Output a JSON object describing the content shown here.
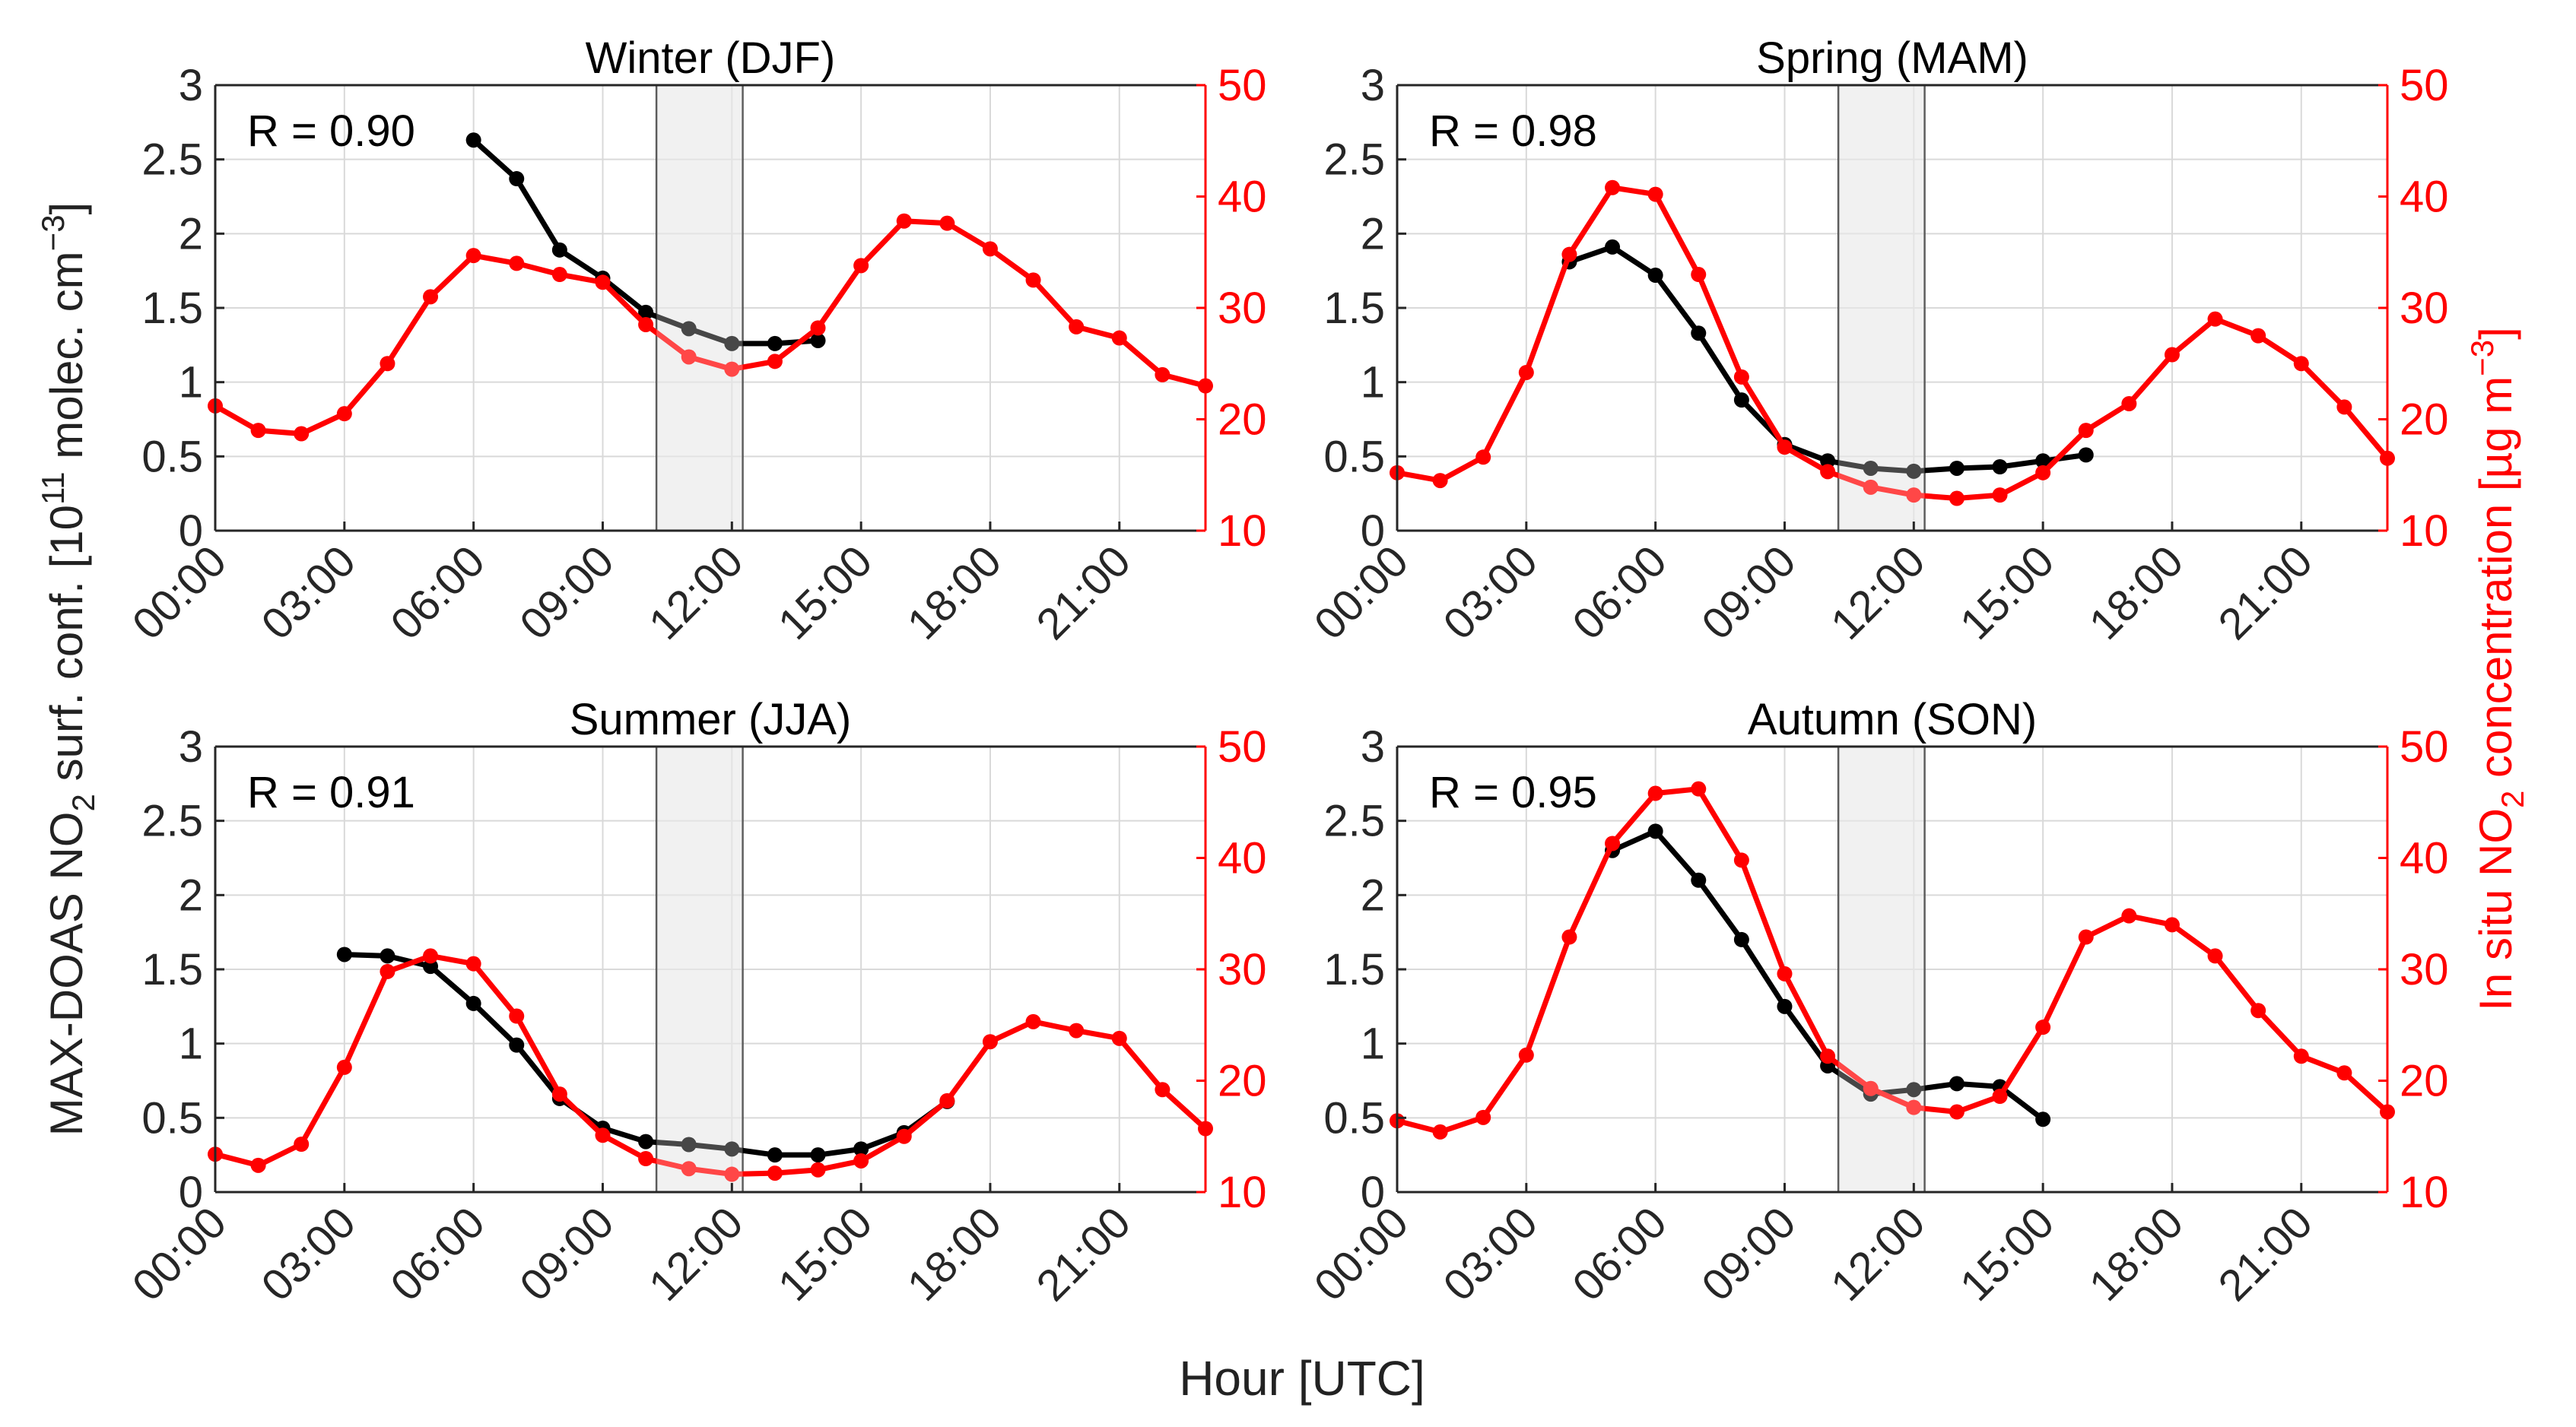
{
  "figure": {
    "ylabel_left": {
      "prefix": "MAX-DOAS NO",
      "sub": "2",
      "mid": " surf. conf. [10",
      "sup": "11",
      "suffix": " molec. cm",
      "sup2": "−3",
      "end": "]"
    },
    "ylabel_right": {
      "prefix": "In situ NO",
      "sub": "2",
      "mid": " concentration [µg m",
      "sup": "−3",
      "end": "]"
    },
    "xlabel": "Hour [UTC]"
  },
  "chart_data": [
    {
      "type": "line",
      "title": "Winter (DJF)",
      "annotation": "R = 0.90",
      "x_ticks": [
        "00:00",
        "03:00",
        "06:00",
        "09:00",
        "12:00",
        "15:00",
        "18:00",
        "21:00"
      ],
      "xlim": [
        0,
        23
      ],
      "ylim_left": [
        0,
        3
      ],
      "ylim_right": [
        10,
        50
      ],
      "yticks_left": [
        "0",
        "0.5",
        "1",
        "1.5",
        "2",
        "2.5",
        "3"
      ],
      "yticks_right": [
        "10",
        "20",
        "30",
        "40",
        "50"
      ],
      "shaded_band_hours": [
        10.25,
        12.25
      ],
      "series": [
        {
          "name": "MAX-DOAS",
          "axis": "left",
          "color": "#000000",
          "x": [
            6,
            7,
            8,
            9,
            10,
            11,
            12,
            13,
            14
          ],
          "values": [
            2.63,
            2.37,
            1.89,
            1.7,
            1.47,
            1.36,
            1.26,
            1.26,
            1.28
          ]
        },
        {
          "name": "In situ",
          "axis": "right",
          "color": "#ff0000",
          "x": [
            0,
            1,
            2,
            3,
            4,
            5,
            6,
            7,
            8,
            9,
            10,
            11,
            12,
            13,
            14,
            15,
            16,
            17,
            18,
            19,
            20,
            21,
            22,
            23
          ],
          "values": [
            21.2,
            19.0,
            18.7,
            20.5,
            25.0,
            31.0,
            34.7,
            34.0,
            33.0,
            32.3,
            28.5,
            25.6,
            24.5,
            25.2,
            28.2,
            33.8,
            37.8,
            37.6,
            35.3,
            32.5,
            28.3,
            27.3,
            24.0,
            23.0
          ]
        }
      ]
    },
    {
      "type": "line",
      "title": "Spring (MAM)",
      "annotation": "R = 0.98",
      "x_ticks": [
        "00:00",
        "03:00",
        "06:00",
        "09:00",
        "12:00",
        "15:00",
        "18:00",
        "21:00"
      ],
      "xlim": [
        0,
        23
      ],
      "ylim_left": [
        0,
        3
      ],
      "ylim_right": [
        10,
        50
      ],
      "yticks_left": [
        "0",
        "0.5",
        "1",
        "1.5",
        "2",
        "2.5",
        "3"
      ],
      "yticks_right": [
        "10",
        "20",
        "30",
        "40",
        "50"
      ],
      "shaded_band_hours": [
        10.25,
        12.25
      ],
      "series": [
        {
          "name": "MAX-DOAS",
          "axis": "left",
          "color": "#000000",
          "x": [
            4,
            5,
            6,
            7,
            8,
            9,
            10,
            11,
            12,
            13,
            14,
            15,
            16
          ],
          "values": [
            1.81,
            1.91,
            1.72,
            1.33,
            0.88,
            0.58,
            0.47,
            0.42,
            0.4,
            0.42,
            0.43,
            0.47,
            0.51
          ]
        },
        {
          "name": "In situ",
          "axis": "right",
          "color": "#ff0000",
          "x": [
            0,
            1,
            2,
            3,
            4,
            5,
            6,
            7,
            8,
            9,
            10,
            11,
            12,
            13,
            14,
            15,
            16,
            17,
            18,
            19,
            20,
            21,
            22,
            23
          ],
          "values": [
            15.2,
            14.5,
            16.6,
            24.2,
            34.8,
            40.8,
            40.2,
            33.0,
            23.8,
            17.5,
            15.3,
            13.9,
            13.2,
            12.9,
            13.2,
            15.2,
            19.0,
            21.4,
            25.8,
            29.0,
            27.5,
            25.0,
            21.1,
            16.5
          ]
        }
      ]
    },
    {
      "type": "line",
      "title": "Summer (JJA)",
      "annotation": "R = 0.91",
      "x_ticks": [
        "00:00",
        "03:00",
        "06:00",
        "09:00",
        "12:00",
        "15:00",
        "18:00",
        "21:00"
      ],
      "xlim": [
        0,
        23
      ],
      "ylim_left": [
        0,
        3
      ],
      "ylim_right": [
        10,
        50
      ],
      "yticks_left": [
        "0",
        "0.5",
        "1",
        "1.5",
        "2",
        "2.5",
        "3"
      ],
      "yticks_right": [
        "10",
        "20",
        "30",
        "40",
        "50"
      ],
      "shaded_band_hours": [
        10.25,
        12.25
      ],
      "series": [
        {
          "name": "MAX-DOAS",
          "axis": "left",
          "color": "#000000",
          "x": [
            3,
            4,
            5,
            6,
            7,
            8,
            9,
            10,
            11,
            12,
            13,
            14,
            15,
            16,
            17
          ],
          "values": [
            1.6,
            1.59,
            1.52,
            1.27,
            0.99,
            0.63,
            0.43,
            0.34,
            0.32,
            0.29,
            0.25,
            0.25,
            0.29,
            0.4,
            0.61
          ]
        },
        {
          "name": "In situ",
          "axis": "right",
          "color": "#ff0000",
          "x": [
            0,
            1,
            2,
            3,
            4,
            5,
            6,
            7,
            8,
            9,
            10,
            11,
            12,
            13,
            14,
            15,
            16,
            17,
            18,
            19,
            20,
            21,
            22,
            23
          ],
          "values": [
            13.4,
            12.4,
            14.3,
            21.2,
            29.8,
            31.2,
            30.5,
            25.8,
            18.8,
            15.1,
            13.0,
            12.1,
            11.6,
            11.7,
            12.0,
            12.8,
            15.0,
            18.2,
            23.5,
            25.3,
            24.5,
            23.8,
            19.2,
            15.7
          ]
        }
      ]
    },
    {
      "type": "line",
      "title": "Autumn (SON)",
      "annotation": "R = 0.95",
      "x_ticks": [
        "00:00",
        "03:00",
        "06:00",
        "09:00",
        "12:00",
        "15:00",
        "18:00",
        "21:00"
      ],
      "xlim": [
        0,
        23
      ],
      "ylim_left": [
        0,
        3
      ],
      "ylim_right": [
        10,
        50
      ],
      "yticks_left": [
        "0",
        "0.5",
        "1",
        "1.5",
        "2",
        "2.5",
        "3"
      ],
      "yticks_right": [
        "10",
        "20",
        "30",
        "40",
        "50"
      ],
      "shaded_band_hours": [
        10.25,
        12.25
      ],
      "series": [
        {
          "name": "MAX-DOAS",
          "axis": "left",
          "color": "#000000",
          "x": [
            5,
            6,
            7,
            8,
            9,
            10,
            11,
            12,
            13,
            14,
            15
          ],
          "values": [
            2.3,
            2.43,
            2.1,
            1.7,
            1.25,
            0.85,
            0.66,
            0.69,
            0.73,
            0.71,
            0.49
          ]
        },
        {
          "name": "In situ",
          "axis": "right",
          "color": "#ff0000",
          "x": [
            0,
            1,
            2,
            3,
            4,
            5,
            6,
            7,
            8,
            9,
            10,
            11,
            12,
            13,
            14,
            15,
            16,
            17,
            18,
            19,
            20,
            21,
            22,
            23
          ],
          "values": [
            16.4,
            15.4,
            16.7,
            22.3,
            32.9,
            41.3,
            45.8,
            46.2,
            39.8,
            29.6,
            22.2,
            19.3,
            17.6,
            17.2,
            18.6,
            24.8,
            32.9,
            34.8,
            34.0,
            31.2,
            26.3,
            22.2,
            20.7,
            17.2
          ]
        }
      ]
    }
  ]
}
